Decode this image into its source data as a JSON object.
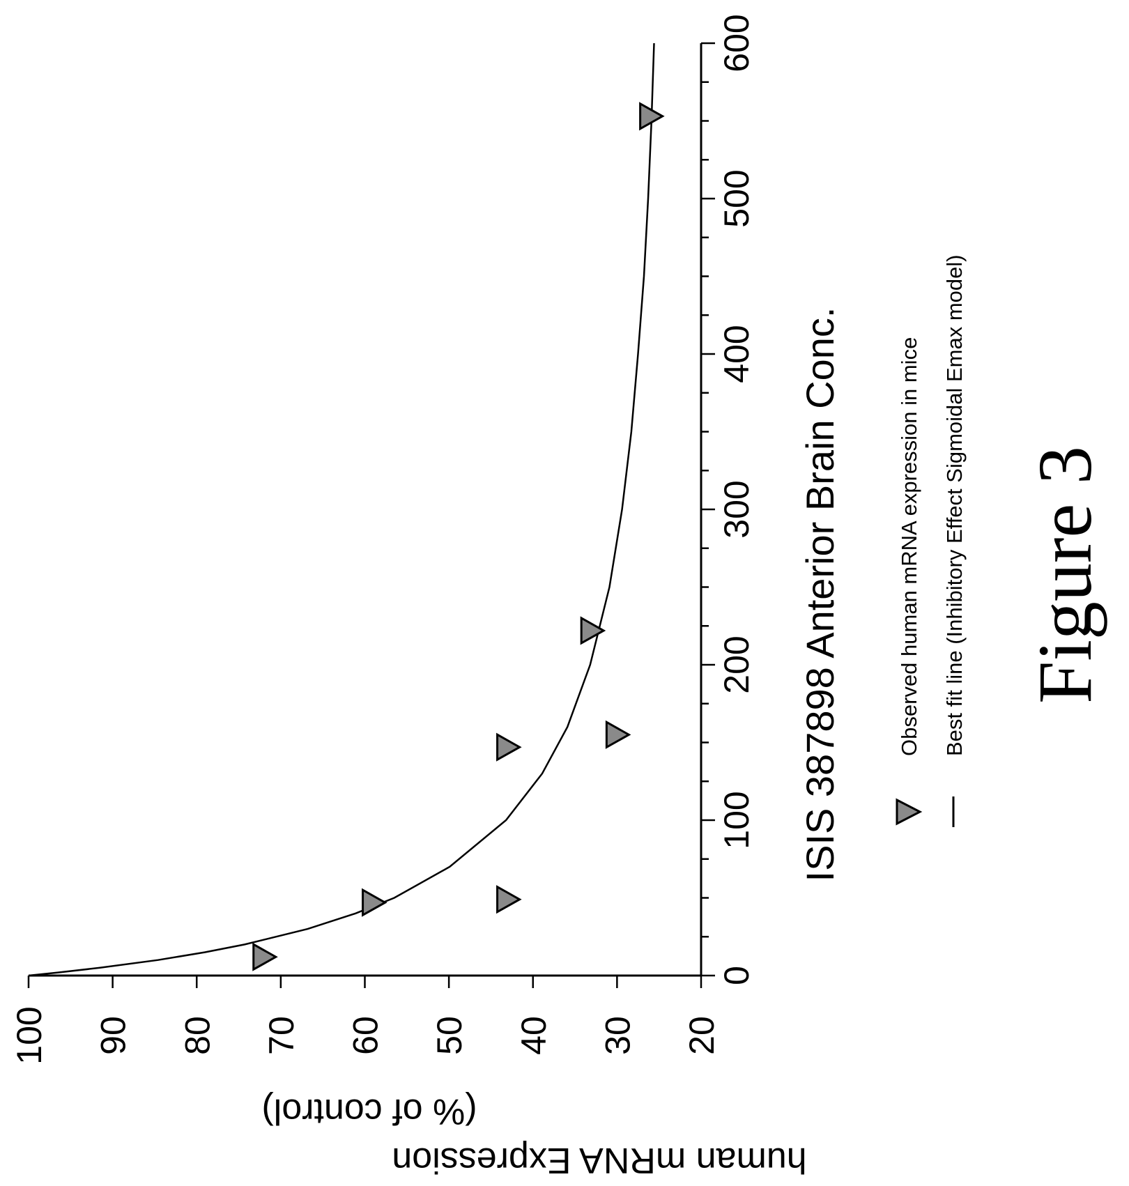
{
  "chart_data": {
    "type": "scatter",
    "title": "ISIS 387898 Anterior Brain Conc.",
    "xlabel": "",
    "ylabel_line1": "human mRNA Expression",
    "ylabel_line2": "(% of control)",
    "xlim": [
      0,
      600
    ],
    "ylim": [
      20,
      100
    ],
    "x_major_ticks": [
      0,
      100,
      200,
      300,
      400,
      500,
      600
    ],
    "x_tick_labels": [
      "0",
      "100",
      "200",
      "300",
      "400",
      "500",
      "600"
    ],
    "x_minor_step": 25,
    "y_major_ticks": [
      100,
      90,
      80,
      70,
      60,
      50,
      40,
      30,
      20
    ],
    "y_tick_labels": [
      "100",
      "90",
      "80",
      "70",
      "60",
      "50",
      "40",
      "30",
      "20"
    ],
    "grid": false,
    "orientation": "rotated 90 degrees clockwise",
    "series": [
      {
        "name": "Observed human mRNA expression in mice",
        "kind": "points",
        "marker": "triangle",
        "points": [
          {
            "x": 12,
            "y": 72
          },
          {
            "x": 47,
            "y": 59
          },
          {
            "x": 49,
            "y": 43
          },
          {
            "x": 147,
            "y": 43
          },
          {
            "x": 155,
            "y": 30
          },
          {
            "x": 222,
            "y": 33
          },
          {
            "x": 553,
            "y": 26
          }
        ]
      },
      {
        "name": "Best fit line (Inhibitory Effect Sigmoidal Emax model)",
        "kind": "line",
        "points": [
          {
            "x": 0,
            "y": 100
          },
          {
            "x": 2,
            "y": 96.4
          },
          {
            "x": 5,
            "y": 91.5
          },
          {
            "x": 10,
            "y": 84.6
          },
          {
            "x": 15,
            "y": 79.0
          },
          {
            "x": 20,
            "y": 74.3
          },
          {
            "x": 30,
            "y": 66.8
          },
          {
            "x": 40,
            "y": 61.1
          },
          {
            "x": 50,
            "y": 56.5
          },
          {
            "x": 70,
            "y": 49.9
          },
          {
            "x": 100,
            "y": 43.2
          },
          {
            "x": 130,
            "y": 38.9
          },
          {
            "x": 160,
            "y": 35.9
          },
          {
            "x": 200,
            "y": 33.2
          },
          {
            "x": 250,
            "y": 30.9
          },
          {
            "x": 300,
            "y": 29.4
          },
          {
            "x": 350,
            "y": 28.3
          },
          {
            "x": 400,
            "y": 27.5
          },
          {
            "x": 450,
            "y": 26.8
          },
          {
            "x": 500,
            "y": 26.3
          },
          {
            "x": 550,
            "y": 25.9
          },
          {
            "x": 600,
            "y": 25.6
          }
        ]
      }
    ],
    "legend": {
      "placement": "right",
      "entries": [
        {
          "label": "Observed human mRNA expression in mice",
          "symbol": "triangle"
        },
        {
          "label": "Best fit line (Inhibitory Effect Sigmoidal Emax model)",
          "symbol": "line"
        }
      ]
    }
  },
  "caption": "Figure 3",
  "colors": {
    "marker_fill": "#8a8a8a",
    "marker_stroke": "#000000",
    "line": "#000000",
    "axis": "#000000"
  }
}
